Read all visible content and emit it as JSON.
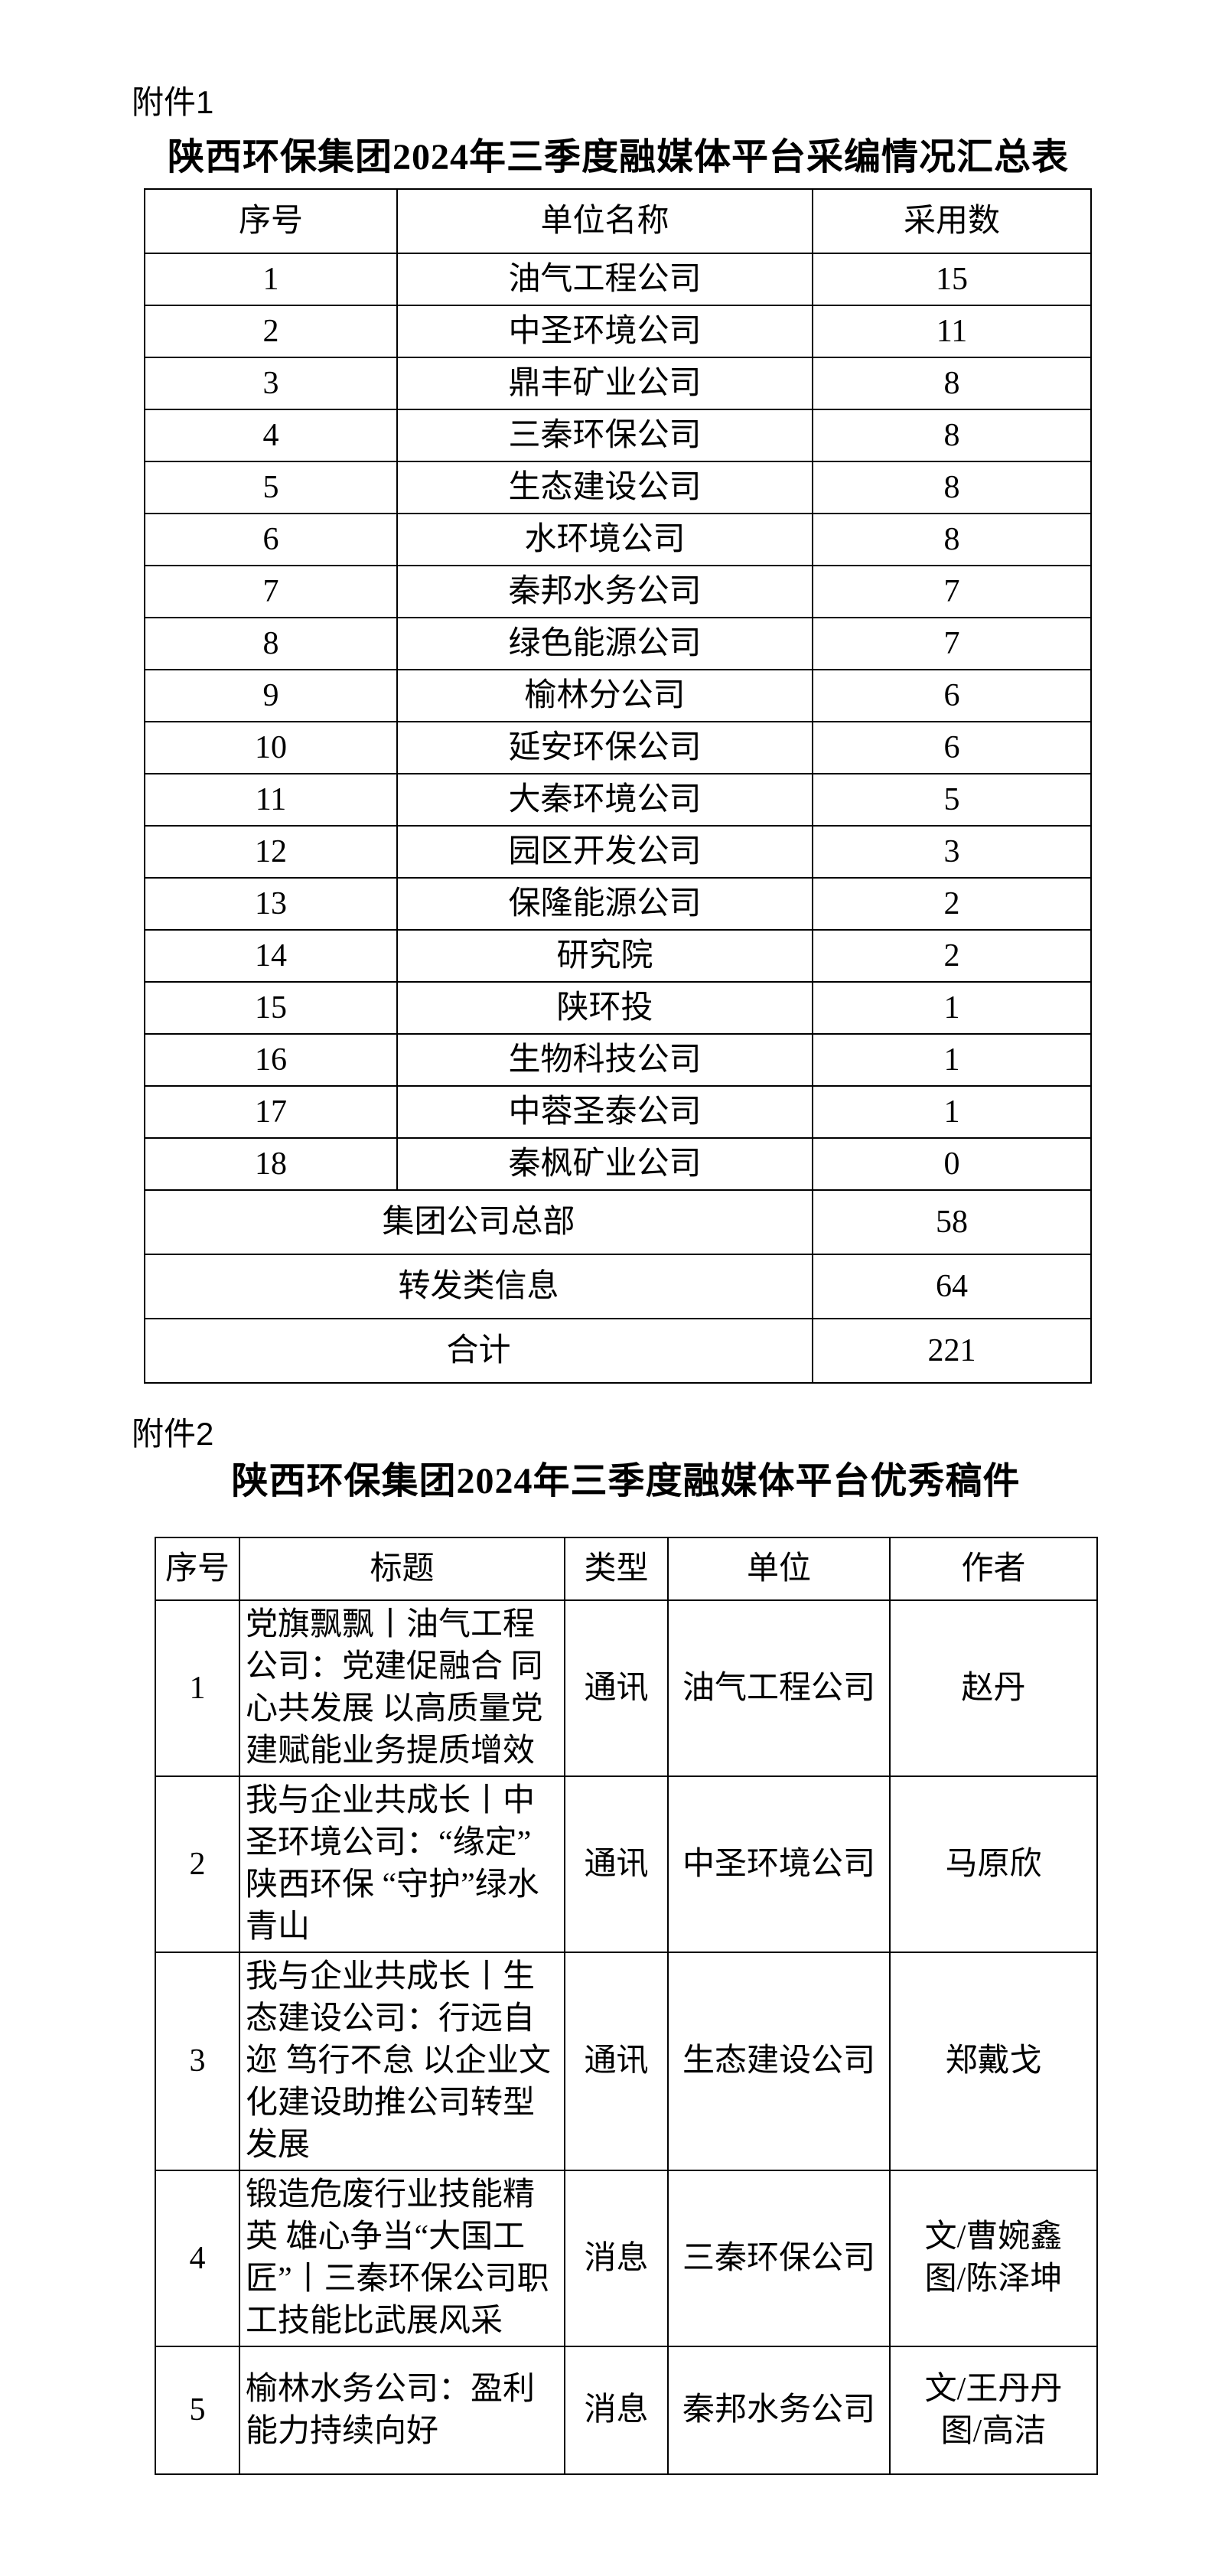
{
  "attachment1": {
    "label": "附件1",
    "title": "陕西环保集团2024年三季度融媒体平台采编情况汇总表",
    "headers": [
      "序号",
      "单位名称",
      "采用数"
    ],
    "rows": [
      [
        "1",
        "油气工程公司",
        "15"
      ],
      [
        "2",
        "中圣环境公司",
        "11"
      ],
      [
        "3",
        "鼎丰矿业公司",
        "8"
      ],
      [
        "4",
        "三秦环保公司",
        "8"
      ],
      [
        "5",
        "生态建设公司",
        "8"
      ],
      [
        "6",
        "水环境公司",
        "8"
      ],
      [
        "7",
        "秦邦水务公司",
        "7"
      ],
      [
        "8",
        "绿色能源公司",
        "7"
      ],
      [
        "9",
        "榆林分公司",
        "6"
      ],
      [
        "10",
        "延安环保公司",
        "6"
      ],
      [
        "11",
        "大秦环境公司",
        "5"
      ],
      [
        "12",
        "园区开发公司",
        "3"
      ],
      [
        "13",
        "保隆能源公司",
        "2"
      ],
      [
        "14",
        "研究院",
        "2"
      ],
      [
        "15",
        "陕环投",
        "1"
      ],
      [
        "16",
        "生物科技公司",
        "1"
      ],
      [
        "17",
        "中蓉圣泰公司",
        "1"
      ],
      [
        "18",
        "秦枫矿业公司",
        "0"
      ]
    ],
    "summary_rows": [
      [
        "集团公司总部",
        "58"
      ],
      [
        "转发类信息",
        "64"
      ],
      [
        "合计",
        "221"
      ]
    ]
  },
  "attachment2": {
    "label": "附件2",
    "title": "陕西环保集团2024年三季度融媒体平台优秀稿件",
    "headers": [
      "序号",
      "标题",
      "类型",
      "单位",
      "作者"
    ],
    "rows": [
      {
        "no": "1",
        "title": "党旗飘飘丨油气工程公司：党建促融合 同心共发展 以高质量党建赋能业务提质增效",
        "type": "通讯",
        "unit": "油气工程公司",
        "author": "赵丹"
      },
      {
        "no": "2",
        "title": "我与企业共成长丨中圣环境公司：“缘定”陕西环保 “守护”绿水青山",
        "type": "通讯",
        "unit": "中圣环境公司",
        "author": "马原欣"
      },
      {
        "no": "3",
        "title": "我与企业共成长丨生态建设公司：行远自迩 笃行不怠 以企业文化建设助推公司转型发展",
        "type": "通讯",
        "unit": "生态建设公司",
        "author": "郑戴戈"
      },
      {
        "no": "4",
        "title": "锻造危废行业技能精英 雄心争当“大国工匠”丨三秦环保公司职工技能比武展风采",
        "type": "消息",
        "unit": "三秦环保公司",
        "author": "文/曹婉鑫\n图/陈泽坤"
      },
      {
        "no": "5",
        "title": "榆林水务公司：盈利能力持续向好",
        "type": "消息",
        "unit": "秦邦水务公司",
        "author": "文/王丹丹\n图/高洁"
      }
    ]
  }
}
